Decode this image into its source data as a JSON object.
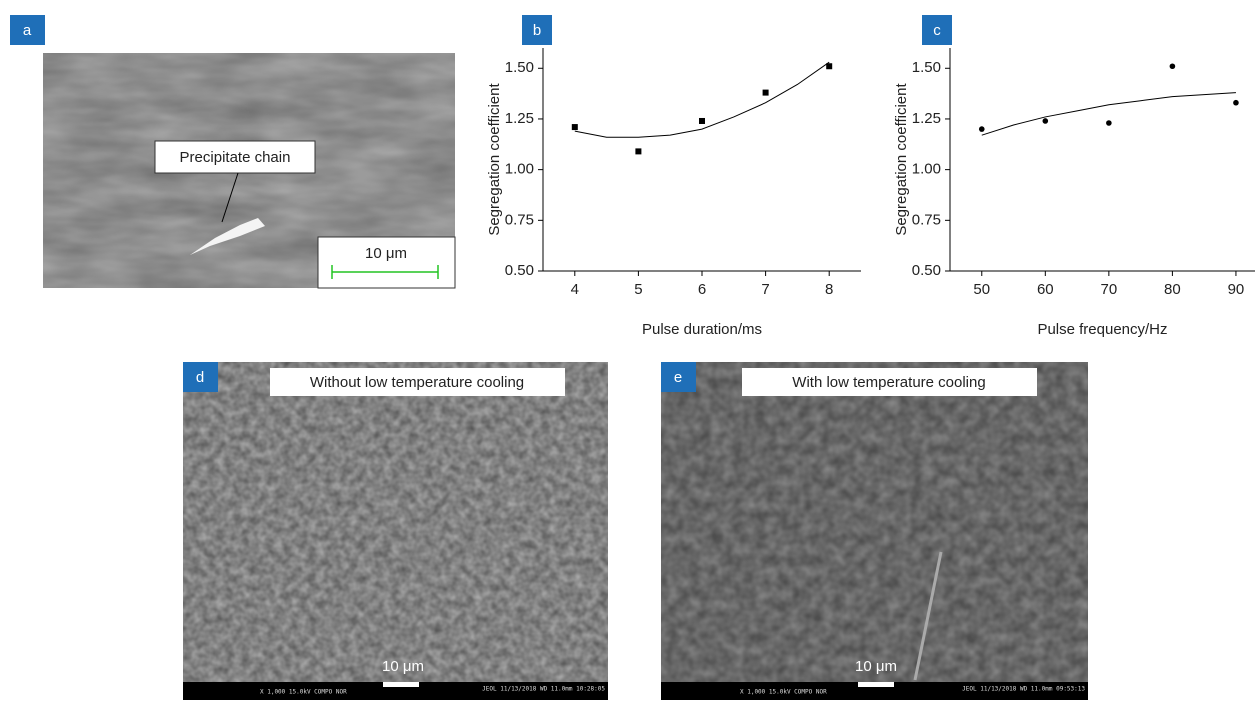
{
  "chart_data": [
    {
      "type": "scatter",
      "ylabel": "Segregation coefficient",
      "xlabel": "Pulse duration/ms",
      "x": [
        4,
        5,
        6,
        7,
        8
      ],
      "values": [
        1.21,
        1.09,
        1.24,
        1.38,
        1.51
      ],
      "fit": {
        "x": [
          4,
          4.5,
          5,
          5.5,
          6,
          6.5,
          7,
          7.5,
          8
        ],
        "values": [
          1.19,
          1.16,
          1.16,
          1.17,
          1.2,
          1.26,
          1.33,
          1.42,
          1.53
        ]
      },
      "marker": "square",
      "color": "#000000",
      "xlim": [
        3.5,
        8.5
      ],
      "xticks": [
        4,
        5,
        6,
        7,
        8
      ],
      "ylim": [
        0.5,
        1.6
      ],
      "yticks": [
        {
          "value": 0.5,
          "label": "0.50"
        },
        {
          "value": 0.75,
          "label": "0.75"
        },
        {
          "value": 1.0,
          "label": "1.00"
        },
        {
          "value": 1.25,
          "label": "1.25"
        },
        {
          "value": 1.5,
          "label": "1.50"
        }
      ]
    },
    {
      "type": "scatter",
      "ylabel": "Segregation coefficient",
      "xlabel": "Pulse frequency/Hz",
      "x": [
        50,
        60,
        70,
        80,
        90
      ],
      "values": [
        1.2,
        1.24,
        1.23,
        1.51,
        1.33
      ],
      "fit": {
        "x": [
          50,
          55,
          60,
          65,
          70,
          75,
          80,
          85,
          90
        ],
        "values": [
          1.17,
          1.22,
          1.26,
          1.29,
          1.32,
          1.34,
          1.36,
          1.37,
          1.38
        ]
      },
      "marker": "circle",
      "color": "#000000",
      "xlim": [
        45,
        93
      ],
      "xticks": [
        50,
        60,
        70,
        80,
        90
      ],
      "ylim": [
        0.5,
        1.6
      ],
      "yticks": [
        {
          "value": 0.5,
          "label": "0.50"
        },
        {
          "value": 0.75,
          "label": "0.75"
        },
        {
          "value": 1.0,
          "label": "1.00"
        },
        {
          "value": 1.25,
          "label": "1.25"
        },
        {
          "value": 1.5,
          "label": "1.50"
        }
      ]
    }
  ],
  "panels": {
    "a": {
      "label": "a",
      "annotation": "Precipitate chain",
      "scale_bar": "10 μm"
    },
    "b": {
      "label": "b"
    },
    "c": {
      "label": "c"
    },
    "d": {
      "label": "d",
      "caption": "Without low temperature cooling",
      "scale_bar": "10 μm",
      "info_left": "X 1,000     15.0kV COMPO     NOR",
      "info_right": "JEOL     11/13/2018  WD 11.0mm 10:28:05"
    },
    "e": {
      "label": "e",
      "caption": "With low temperature cooling",
      "scale_bar": "10 μm",
      "info_left": "X 1,000     15.0kV COMPO     NOR",
      "info_right": "JEOL     11/13/2018  WD 11.0mm 09:53:13"
    }
  }
}
